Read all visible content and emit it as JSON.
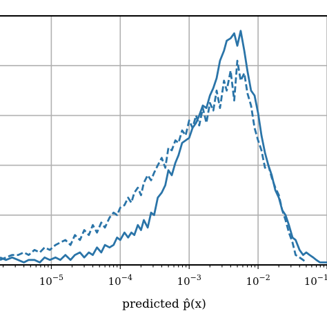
{
  "chart_data": {
    "type": "line",
    "xscale": "log",
    "xlabel": "predicted $\\hat{p}(x)$",
    "xlabel_display": "predicted p̂(x)",
    "xlim": [
      1.8e-06,
      0.1
    ],
    "ylim": [
      0,
      1.0
    ],
    "grid": true,
    "x_ticks": [
      {
        "value": 1e-05,
        "base": "10",
        "exp": "−5"
      },
      {
        "value": 0.0001,
        "base": "10",
        "exp": "−4"
      },
      {
        "value": 0.001,
        "base": "10",
        "exp": "−3"
      },
      {
        "value": 0.01,
        "base": "10",
        "exp": "−2"
      },
      {
        "value": 0.1,
        "base": "10",
        "exp": "−1"
      }
    ],
    "y_gridlines": [
      0.2,
      0.4,
      0.6,
      0.8,
      1.0
    ],
    "color": "#2a74a8",
    "series": [
      {
        "style": "solid",
        "x": [
          1.8e-06,
          2.2e-06,
          2.7e-06,
          3.3e-06,
          4e-06,
          4.7e-06,
          5.7e-06,
          6.8e-06,
          8e-06,
          9.5e-06,
          1.15e-05,
          1.35e-05,
          1.6e-05,
          1.9e-05,
          2.2e-05,
          2.6e-05,
          3e-05,
          3.5e-05,
          4e-05,
          4.6e-05,
          5.3e-05,
          6e-05,
          7e-05,
          8e-05,
          9e-05,
          0.0001,
          0.000115,
          0.00013,
          0.000145,
          0.00016,
          0.00018,
          0.0002,
          0.00022,
          0.00025,
          0.00028,
          0.00031,
          0.00035,
          0.0004,
          0.00045,
          0.0005,
          0.00056,
          0.00063,
          0.0007,
          0.00079,
          0.00089,
          0.001,
          0.00112,
          0.00126,
          0.0014,
          0.00158,
          0.00178,
          0.002,
          0.00224,
          0.0025,
          0.0028,
          0.0032,
          0.0035,
          0.004,
          0.0045,
          0.005,
          0.0056,
          0.0063,
          0.007,
          0.0079,
          0.0089,
          0.01,
          0.0112,
          0.0126,
          0.0141,
          0.0158,
          0.0178,
          0.02,
          0.0224,
          0.025,
          0.028,
          0.0316,
          0.035,
          0.04,
          0.045,
          0.05,
          0.056,
          0.063,
          0.07,
          0.079,
          0.089,
          0.1
        ],
        "y": [
          0.03,
          0.02,
          0.03,
          0.02,
          0.01,
          0.02,
          0.02,
          0.01,
          0.03,
          0.02,
          0.03,
          0.02,
          0.04,
          0.02,
          0.04,
          0.05,
          0.03,
          0.05,
          0.04,
          0.07,
          0.05,
          0.08,
          0.07,
          0.08,
          0.11,
          0.1,
          0.13,
          0.11,
          0.13,
          0.12,
          0.16,
          0.14,
          0.18,
          0.15,
          0.21,
          0.2,
          0.27,
          0.29,
          0.32,
          0.38,
          0.36,
          0.41,
          0.44,
          0.49,
          0.5,
          0.51,
          0.55,
          0.57,
          0.6,
          0.64,
          0.63,
          0.68,
          0.71,
          0.75,
          0.82,
          0.86,
          0.9,
          0.91,
          0.93,
          0.88,
          0.94,
          0.86,
          0.78,
          0.7,
          0.68,
          0.61,
          0.52,
          0.45,
          0.4,
          0.36,
          0.3,
          0.27,
          0.22,
          0.2,
          0.16,
          0.11,
          0.1,
          0.06,
          0.04,
          0.05,
          0.04,
          0.03,
          0.02,
          0.01,
          0.01,
          0.01
        ]
      },
      {
        "style": "dashed",
        "x": [
          1.8e-06,
          2.2e-06,
          2.7e-06,
          3.3e-06,
          4e-06,
          4.7e-06,
          5.7e-06,
          6.8e-06,
          8e-06,
          9.5e-06,
          1.15e-05,
          1.35e-05,
          1.6e-05,
          1.9e-05,
          2.2e-05,
          2.6e-05,
          3e-05,
          3.5e-05,
          4e-05,
          4.6e-05,
          5.3e-05,
          6e-05,
          7e-05,
          8e-05,
          9e-05,
          0.0001,
          0.000115,
          0.00013,
          0.000145,
          0.00016,
          0.00018,
          0.0002,
          0.00022,
          0.00025,
          0.00028,
          0.00031,
          0.00035,
          0.0004,
          0.00045,
          0.0005,
          0.00056,
          0.00063,
          0.0007,
          0.00079,
          0.00089,
          0.001,
          0.00112,
          0.00126,
          0.0014,
          0.00158,
          0.00178,
          0.002,
          0.00224,
          0.0025,
          0.0028,
          0.0032,
          0.0035,
          0.004,
          0.0045,
          0.005,
          0.0056,
          0.0063,
          0.007,
          0.0079,
          0.0089,
          0.01,
          0.0112,
          0.0126,
          0.0141,
          0.0158,
          0.0178,
          0.02,
          0.0224,
          0.025,
          0.028,
          0.0316,
          0.035,
          0.04,
          0.045,
          0.05
        ],
        "y": [
          0.02,
          0.03,
          0.04,
          0.04,
          0.05,
          0.04,
          0.06,
          0.05,
          0.07,
          0.06,
          0.08,
          0.09,
          0.1,
          0.08,
          0.12,
          0.1,
          0.14,
          0.12,
          0.16,
          0.13,
          0.17,
          0.15,
          0.19,
          0.21,
          0.2,
          0.23,
          0.24,
          0.27,
          0.25,
          0.29,
          0.31,
          0.28,
          0.33,
          0.36,
          0.34,
          0.37,
          0.4,
          0.43,
          0.39,
          0.47,
          0.46,
          0.5,
          0.49,
          0.54,
          0.52,
          0.58,
          0.55,
          0.6,
          0.56,
          0.63,
          0.57,
          0.65,
          0.62,
          0.7,
          0.63,
          0.74,
          0.7,
          0.78,
          0.66,
          0.82,
          0.74,
          0.77,
          0.69,
          0.64,
          0.55,
          0.5,
          0.46,
          0.39,
          0.4,
          0.35,
          0.31,
          0.28,
          0.22,
          0.18,
          0.13,
          0.09,
          0.04,
          0.03,
          0.02,
          0.01
        ]
      }
    ]
  }
}
